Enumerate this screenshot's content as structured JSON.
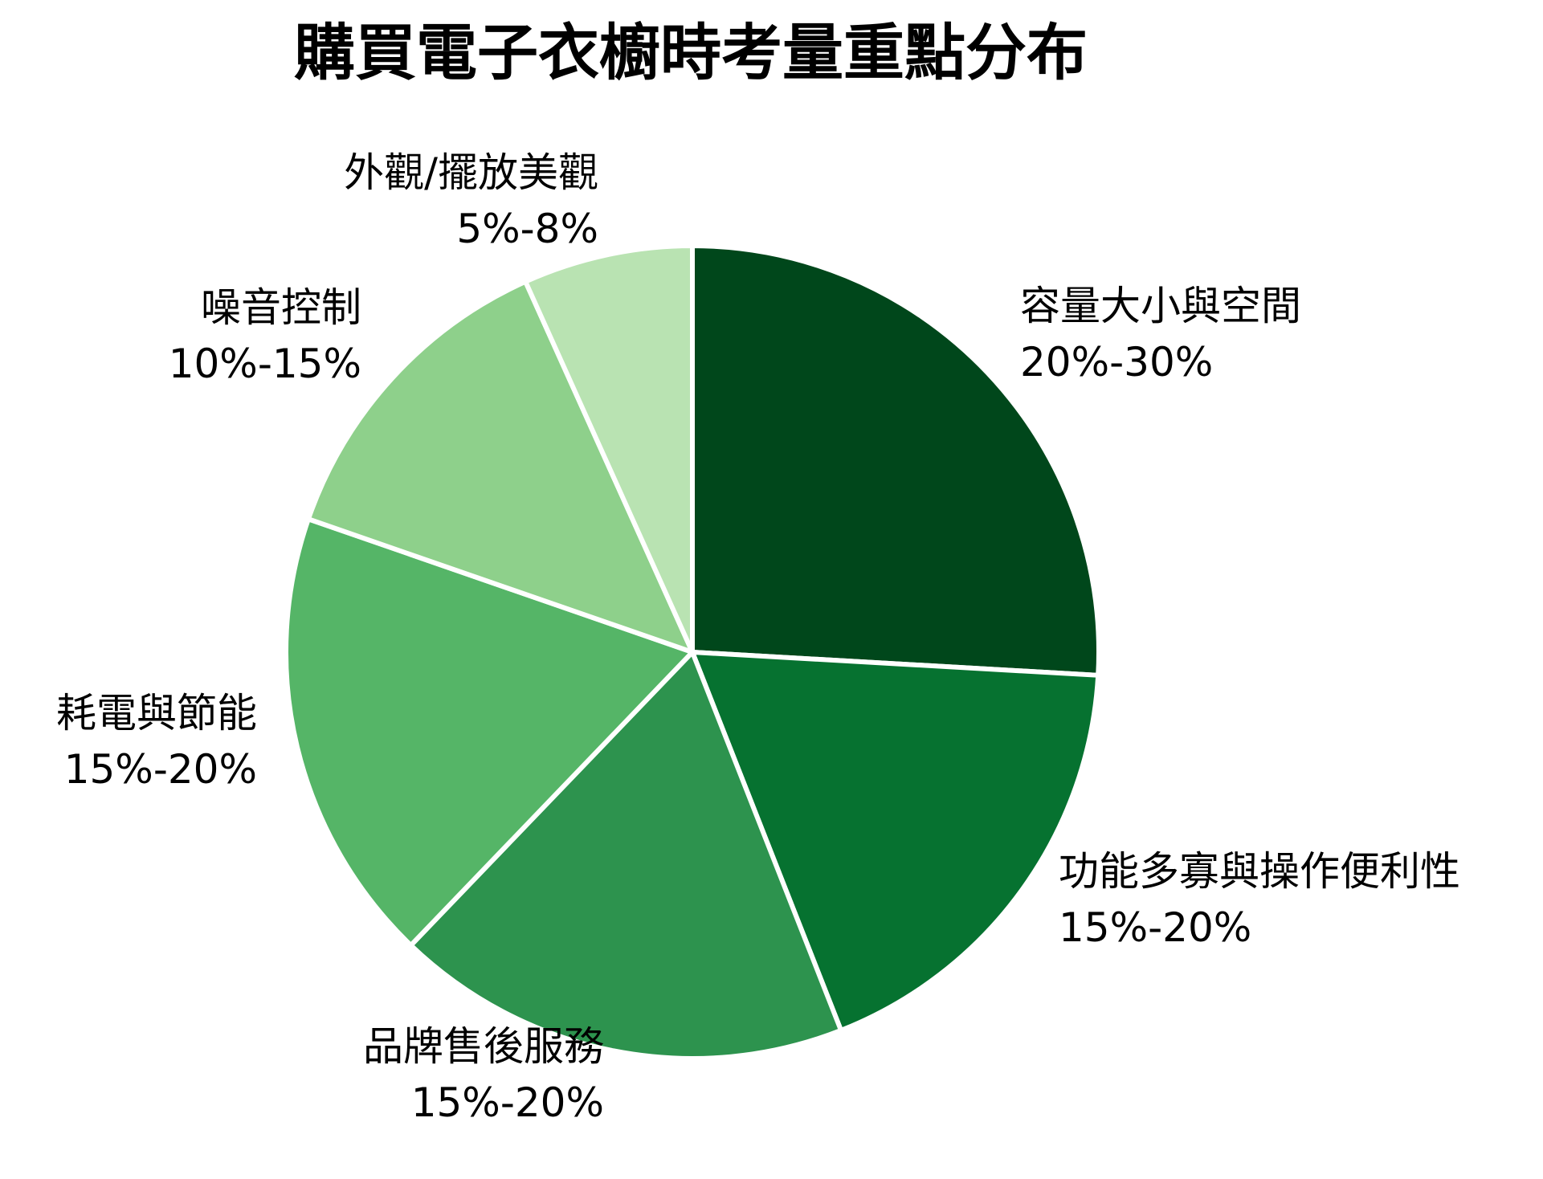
{
  "chart_data": {
    "type": "pie",
    "title": "購買電子衣櫥時考量重點分布",
    "start_angle_deg": 0,
    "direction": "clockwise",
    "slices": [
      {
        "name": "容量大小與空間",
        "range_label": "20%-30%",
        "value": 25,
        "color": "#00471b"
      },
      {
        "name": "功能多寡與操作便利性",
        "range_label": "15%-20%",
        "value": 17.5,
        "color": "#067230"
      },
      {
        "name": "品牌售後服務",
        "range_label": "15%-20%",
        "value": 17.5,
        "color": "#2d934e"
      },
      {
        "name": "耗電與節能",
        "range_label": "15%-20%",
        "value": 17.5,
        "color": "#55b567"
      },
      {
        "name": "噪音控制",
        "range_label": "10%-15%",
        "value": 12.5,
        "color": "#8ed08b"
      },
      {
        "name": "外觀/擺放美觀",
        "range_label": "5%-8%",
        "value": 6.5,
        "color": "#b9e3b2"
      }
    ]
  }
}
